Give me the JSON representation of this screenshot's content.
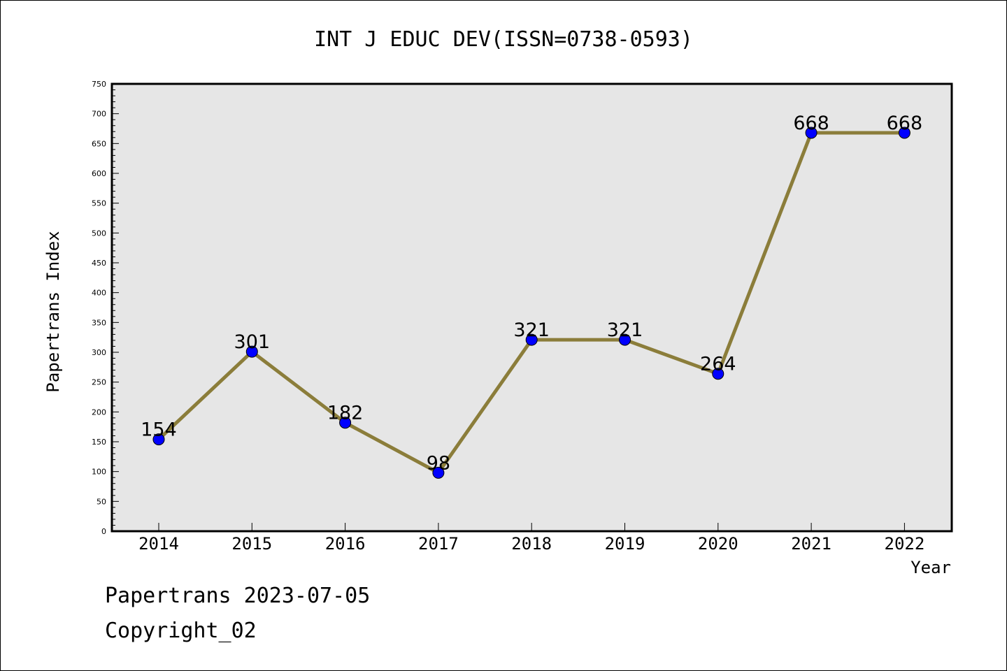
{
  "footer": {
    "line1": "Papertrans 2023-07-05",
    "line2": "Copyright_02"
  },
  "chart_data": {
    "type": "line",
    "title": "INT J EDUC DEV(ISSN=0738-0593)",
    "xlabel": "Year",
    "ylabel": "Papertrans Index",
    "categories": [
      "2014",
      "2015",
      "2016",
      "2017",
      "2018",
      "2019",
      "2020",
      "2021",
      "2022"
    ],
    "series": [
      {
        "values": [
          154,
          301,
          182,
          98,
          321,
          321,
          264,
          668,
          668
        ]
      }
    ],
    "data_labels": [
      "154",
      "301",
      "182",
      "98",
      "321",
      "321",
      "264",
      "668",
      "668"
    ],
    "ylim": [
      0,
      750
    ],
    "yticks": [
      0,
      50,
      100,
      150,
      200,
      250,
      300,
      350,
      400,
      450,
      500,
      550,
      600,
      650,
      700,
      750
    ],
    "grid": false,
    "legend": "none",
    "colors": {
      "line": "#8b7d3a",
      "marker": "#0000ff",
      "plot_background": "#e6e6e6"
    }
  }
}
